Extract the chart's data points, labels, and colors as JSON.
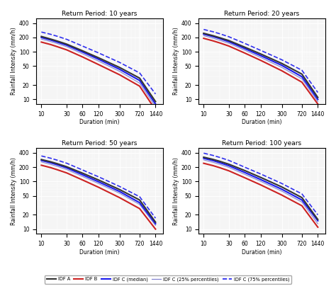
{
  "return_periods": [
    10,
    20,
    50,
    100
  ],
  "titles": [
    "Return Period: 10 years",
    "Return Period: 20 years",
    "Return Period: 50 years",
    "Return Period: 100 years"
  ],
  "durations": [
    10,
    15,
    20,
    30,
    60,
    120,
    300,
    720,
    1440
  ],
  "idf_A": {
    "10": [
      210,
      185,
      168,
      145,
      105,
      75,
      47,
      28,
      9
    ],
    "20": [
      245,
      218,
      198,
      172,
      125,
      90,
      57,
      34,
      11
    ],
    "50": [
      290,
      260,
      237,
      205,
      150,
      108,
      68,
      41,
      14
    ],
    "100": [
      325,
      292,
      267,
      231,
      170,
      122,
      77,
      46,
      16
    ]
  },
  "idf_B": {
    "10": [
      160,
      142,
      128,
      110,
      78,
      54,
      33,
      19,
      6
    ],
    "20": [
      192,
      170,
      154,
      132,
      94,
      66,
      40,
      23,
      8
    ],
    "50": [
      220,
      196,
      177,
      152,
      108,
      76,
      46,
      27,
      10
    ],
    "100": [
      242,
      216,
      196,
      168,
      120,
      85,
      52,
      31,
      11
    ]
  },
  "idf_C_median": {
    "10": [
      200,
      177,
      160,
      138,
      99,
      70,
      43,
      25,
      8
    ],
    "20": [
      235,
      209,
      190,
      163,
      117,
      83,
      52,
      30,
      10
    ],
    "50": [
      278,
      248,
      225,
      194,
      139,
      99,
      62,
      36,
      13
    ],
    "100": [
      308,
      276,
      250,
      215,
      155,
      110,
      69,
      41,
      15
    ]
  },
  "idf_C_25": {
    "10": [
      185,
      164,
      149,
      128,
      91,
      64,
      39,
      22,
      7
    ],
    "20": [
      218,
      193,
      175,
      151,
      108,
      76,
      47,
      27,
      9
    ],
    "50": [
      258,
      229,
      208,
      179,
      128,
      91,
      57,
      33,
      12
    ],
    "100": [
      285,
      254,
      231,
      198,
      142,
      101,
      63,
      37,
      13
    ]
  },
  "idf_C_75": {
    "10": [
      260,
      233,
      212,
      183,
      132,
      95,
      60,
      36,
      13
    ],
    "20": [
      295,
      264,
      240,
      207,
      150,
      107,
      68,
      41,
      14
    ],
    "50": [
      345,
      309,
      281,
      243,
      175,
      126,
      79,
      48,
      17
    ],
    "100": [
      395,
      354,
      322,
      278,
      200,
      144,
      91,
      55,
      20
    ]
  },
  "color_A": "#333333",
  "color_B": "#cc2222",
  "color_C_median": "#1a1aee",
  "color_C_25": "#7777cc",
  "color_C_75": "#1a1aee",
  "xlabel": "Duration (min)",
  "ylabel": "Rainfall Intensity (mm/h)",
  "xticks": [
    10,
    30,
    60,
    120,
    300,
    720,
    1440
  ],
  "yticks_log": [
    10,
    20,
    50,
    100,
    200,
    400
  ],
  "legend_labels": [
    "IDF A",
    "IDF B",
    "IDF C (median)",
    "IDF C (25% percentiles)",
    "IDF C (75% percentiles)"
  ],
  "background_color": "#f5f5f5"
}
